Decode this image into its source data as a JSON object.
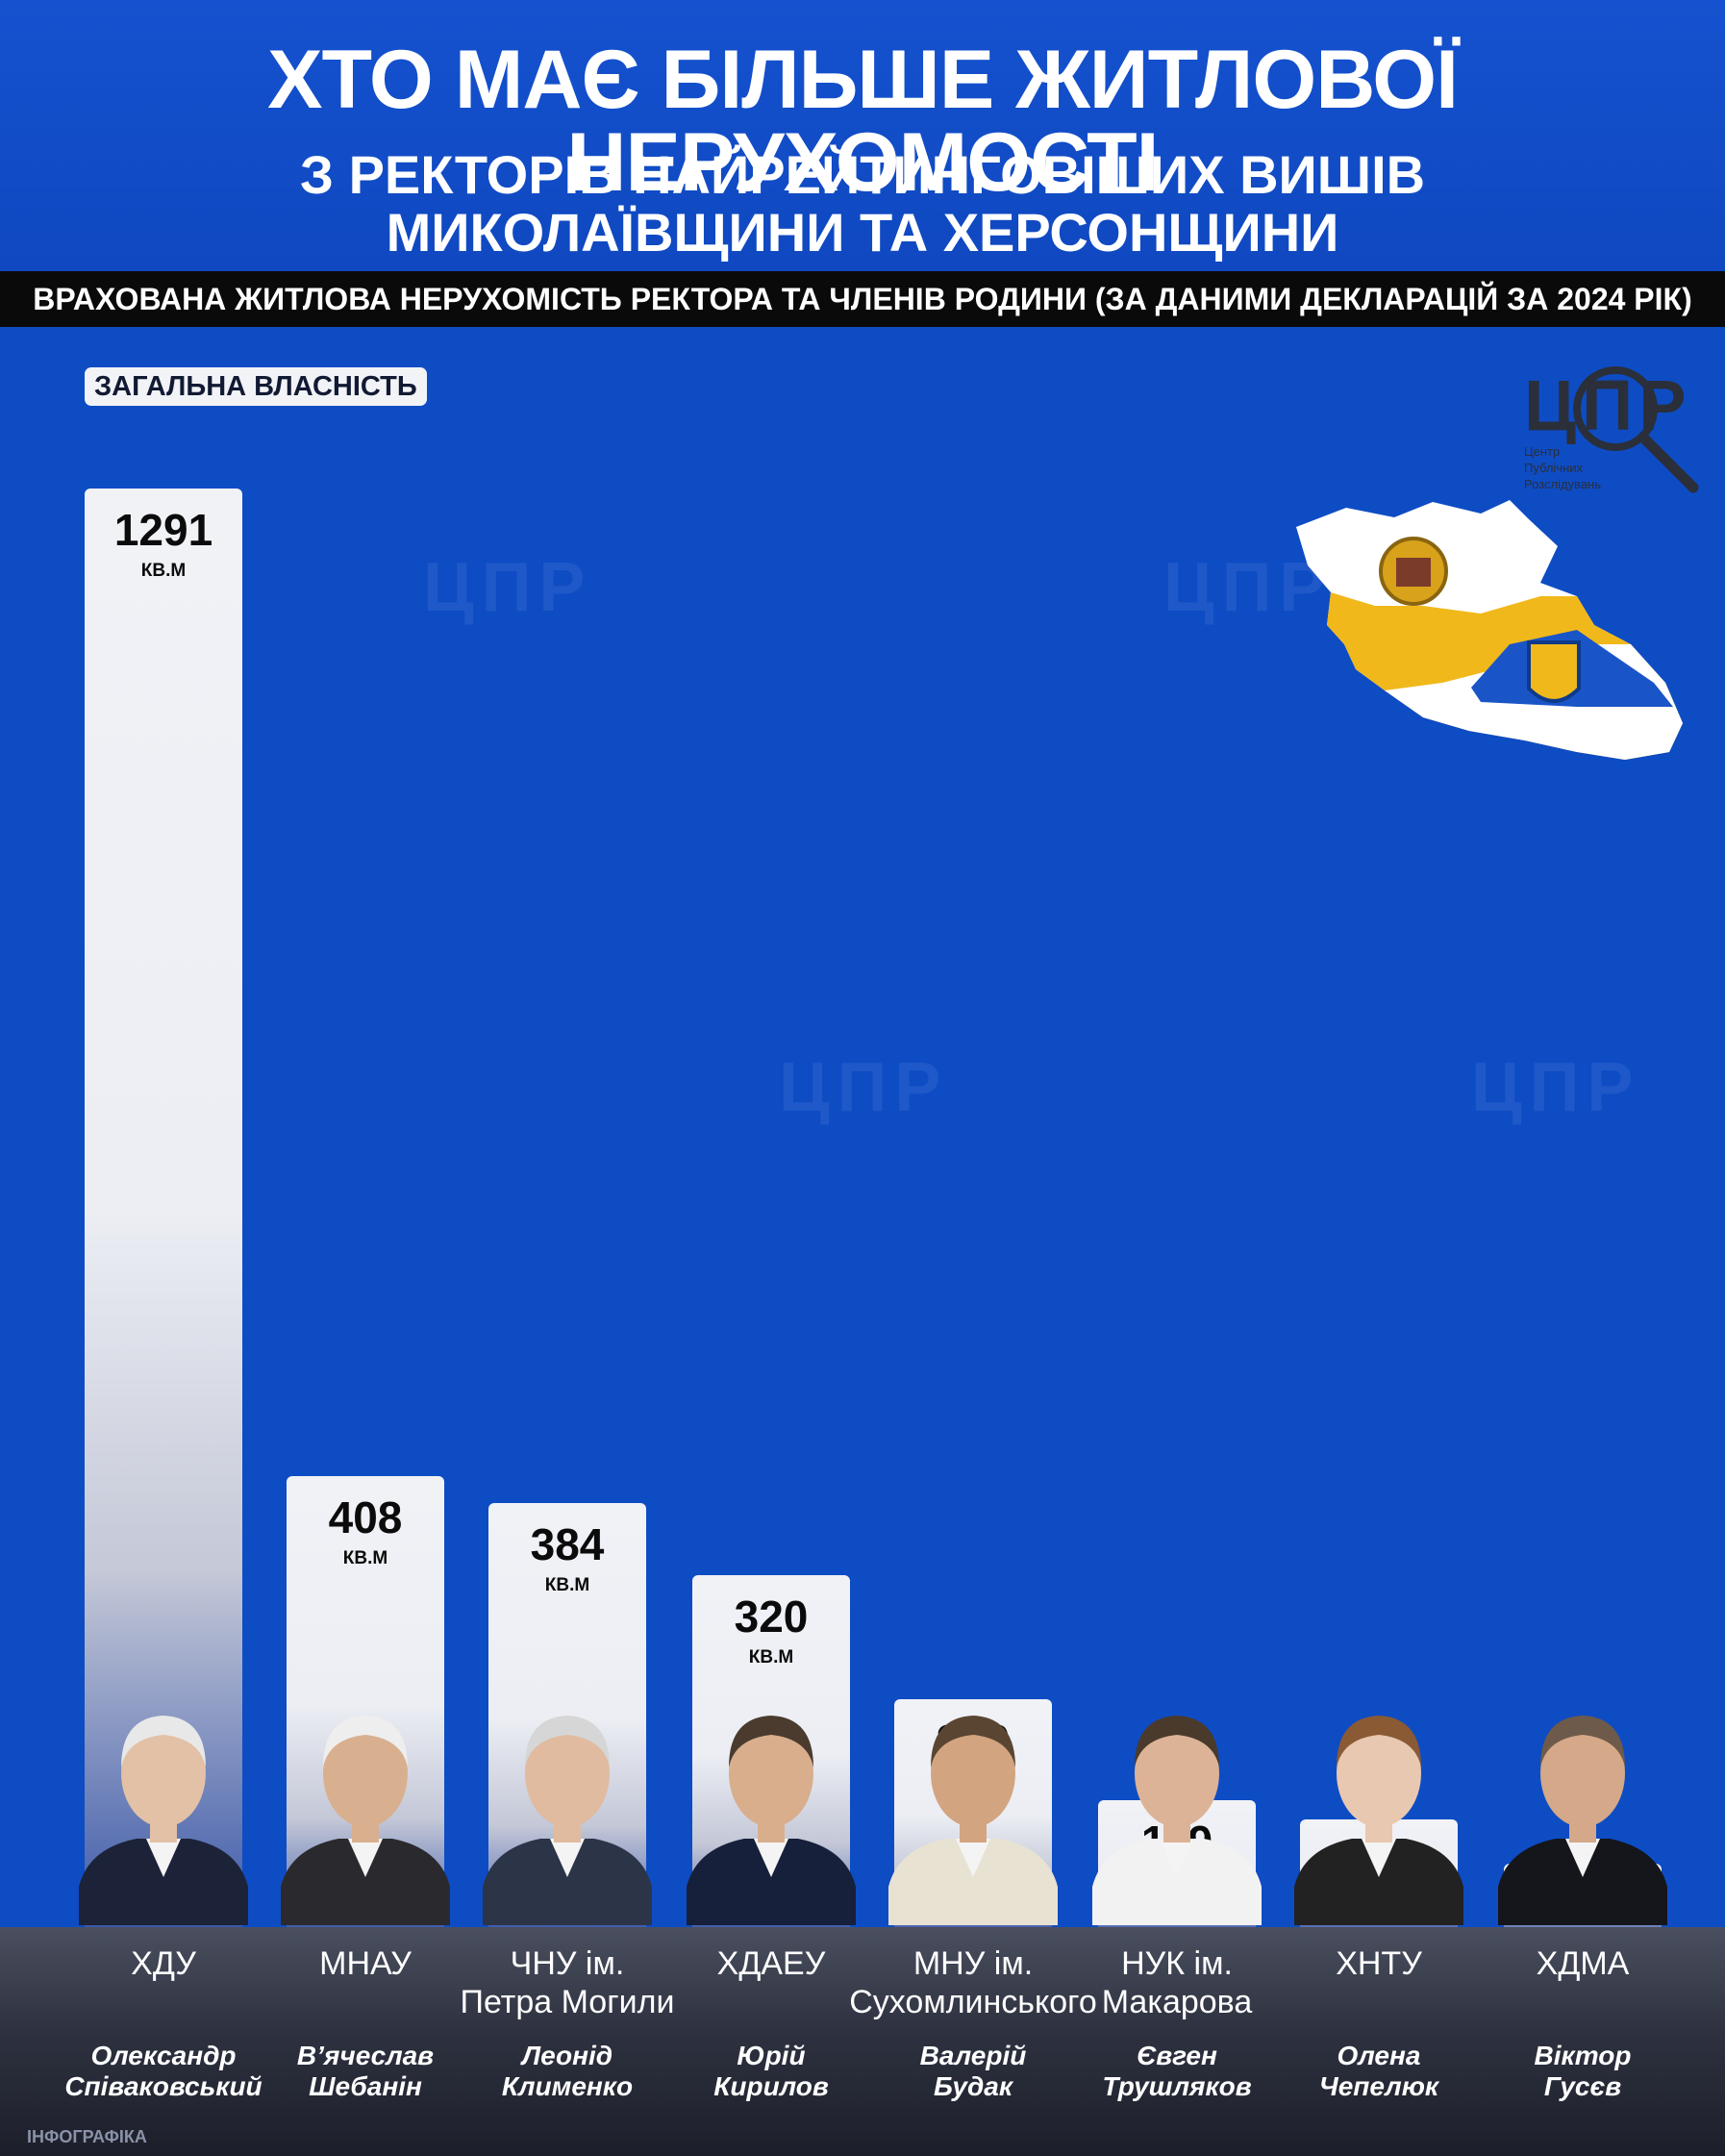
{
  "header": {
    "title": "ХТО МАЄ БІЛЬШЕ ЖИТЛОВОЇ НЕРУХОМОСТІ",
    "subtitle_line1": "З РЕКТОРІВ НАЙРЕЙТИНГОВІШИХ ВИШІВ",
    "subtitle_line2": "МИКОЛАЇВЩИНИ ТА ХЕРСОНЩИНИ"
  },
  "strip": "ВРАХОВАНА ЖИТЛОВА НЕРУХОМІСТЬ РЕКТОРА ТА ЧЛЕНІВ РОДИНИ (ЗА ДАНИМИ ДЕКЛАРАЦІЙ ЗА 2024 РІК)",
  "badge": "ЗАГАЛЬНА ВЛАСНІСТЬ",
  "logo": {
    "text": "ЦПР",
    "sub1": "Центр",
    "sub2": "Публічних",
    "sub3": "Розслідувань"
  },
  "note": "ІНФОГРАФІКА",
  "colors": {
    "background": "#0e4cc4",
    "bar": "#eceef4",
    "footer": "#2e3240",
    "text_dark": "#0b0b0b",
    "map_yellow": "#f0b81a",
    "map_blue": "#1a55c8"
  },
  "chart_data": {
    "type": "bar",
    "unit": "КВ.М",
    "ylim": [
      0,
      1291
    ],
    "categories": [
      {
        "inst1": "ХДУ",
        "inst2": "",
        "name1": "Олександр",
        "name2": "Співаковський"
      },
      {
        "inst1": "МНАУ",
        "inst2": "",
        "name1": "В’ячеслав",
        "name2": "Шебанін"
      },
      {
        "inst1": "ЧНУ ім.",
        "inst2": "Петра Могили",
        "name1": "Леонід",
        "name2": "Клименко"
      },
      {
        "inst1": "ХДАЕУ",
        "inst2": "",
        "name1": "Юрій",
        "name2": "Кирилов"
      },
      {
        "inst1": "МНУ ім.",
        "inst2": "Сухомлинського",
        "name1": "Валерій",
        "name2": "Будак"
      },
      {
        "inst1": "НУК ім.",
        "inst2": "Макарова",
        "name1": "Євген",
        "name2": "Трушляков"
      },
      {
        "inst1": "ХНТУ",
        "inst2": "",
        "name1": "Олена",
        "name2": "Чепелюк"
      },
      {
        "inst1": "ХДМА",
        "inst2": "",
        "name1": "Віктор",
        "name2": "Гусєв"
      }
    ],
    "values": [
      1291,
      408,
      384,
      320,
      209,
      119,
      101,
      62
    ]
  }
}
